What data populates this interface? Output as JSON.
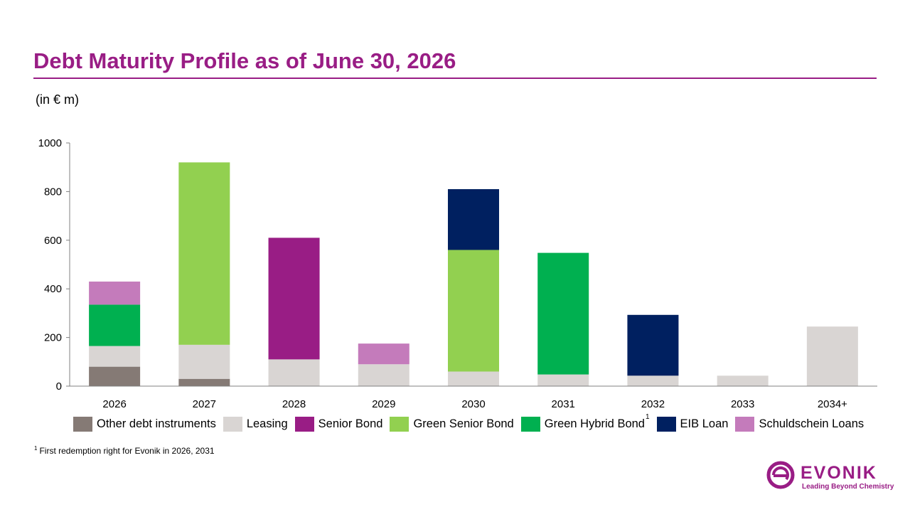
{
  "title": "Debt Maturity Profile as of June 30, 2026",
  "unit_label": "(in € m)",
  "footnote": {
    "marker": "1",
    "text": "First redemption right for Evonik in 2026, 2031"
  },
  "logo": {
    "word": "EVONIK",
    "tagline": "Leading Beyond Chemistry"
  },
  "colors": {
    "accent": "#991d85",
    "axis": "#808080"
  },
  "chart_data": {
    "type": "bar",
    "stacked": true,
    "categories": [
      "2026",
      "2027",
      "2028",
      "2029",
      "2030",
      "2031",
      "2032",
      "2033",
      "2034+"
    ],
    "ylim": [
      0,
      1000
    ],
    "yticks": [
      0,
      200,
      400,
      600,
      800,
      1000
    ],
    "grid": false,
    "legend_position": "bottom",
    "series": [
      {
        "name": "Other debt instruments",
        "color": "#857a75",
        "values": [
          80,
          30,
          0,
          0,
          0,
          0,
          0,
          0,
          0
        ]
      },
      {
        "name": "Leasing",
        "color": "#d9d5d3",
        "values": [
          85,
          140,
          110,
          90,
          60,
          48,
          43,
          43,
          245
        ]
      },
      {
        "name": "Senior Bond",
        "color": "#991d85",
        "values": [
          0,
          0,
          500,
          0,
          0,
          0,
          0,
          0,
          0
        ]
      },
      {
        "name": "Green Senior Bond",
        "color": "#92d050",
        "values": [
          0,
          750,
          0,
          0,
          500,
          0,
          0,
          0,
          0
        ]
      },
      {
        "name": "Green Hybrid Bond",
        "color": "#00b050",
        "values": [
          170,
          0,
          0,
          0,
          0,
          500,
          0,
          0,
          0
        ],
        "footnote": "1"
      },
      {
        "name": "EIB Loan",
        "color": "#002060",
        "values": [
          0,
          0,
          0,
          0,
          250,
          0,
          250,
          0,
          0
        ]
      },
      {
        "name": "Schuldschein Loans",
        "color": "#c47bbb",
        "values": [
          95,
          0,
          0,
          85,
          0,
          0,
          0,
          0,
          0
        ]
      }
    ]
  }
}
